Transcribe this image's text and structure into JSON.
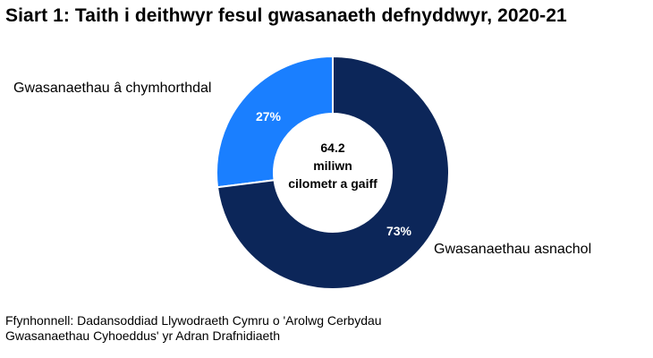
{
  "chart_data": {
    "type": "pie",
    "title": "Siart 1: Taith i deithwyr fesul gwasanaeth defnyddwyr, 2020-21",
    "donut": true,
    "center_label": [
      "64.2",
      "miliwn",
      "cilometr a gaiff"
    ],
    "slices": [
      {
        "name": "Gwasanaethau â chymhorthdal",
        "value": 27,
        "label": "27%",
        "color": "#1a7fff"
      },
      {
        "name": "Gwasanaethau asnachol",
        "value": 73,
        "label": "73%",
        "color": "#0c2659"
      }
    ],
    "source": [
      "Ffynhonnell: Dadansoddiad Llywodraeth Cymru o 'Arolwg Cerbydau",
      "Gwasanaethau Cyhoeddus' yr Adran Drafnidiaeth"
    ]
  }
}
